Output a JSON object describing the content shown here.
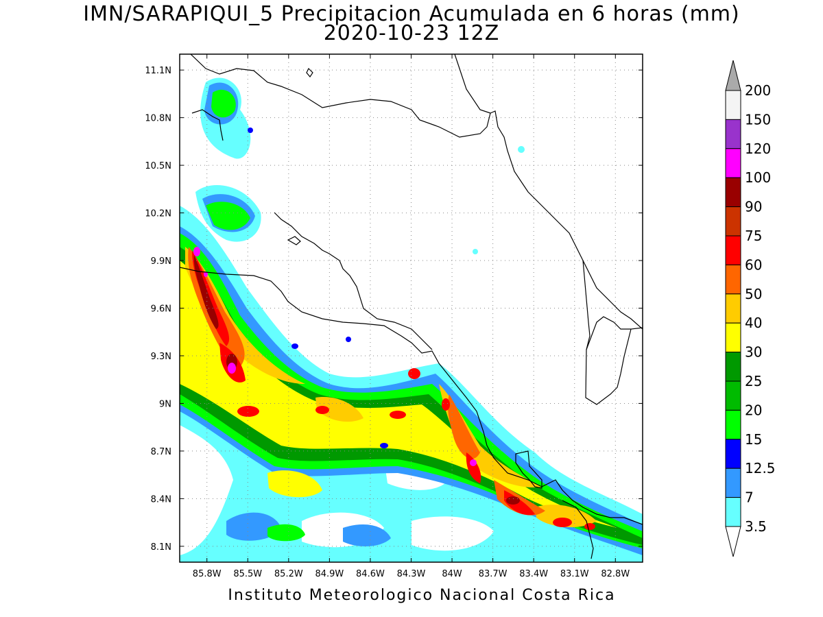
{
  "title": {
    "line1": "IMN/SARAPIQUI_5 Precipitacion Acumulada en 6 horas (mm)",
    "line2": "2020-10-23 12Z"
  },
  "footer": "Instituto Meteorologico Nacional Costa Rica",
  "map": {
    "lon_range": [
      -86.0,
      -82.6
    ],
    "lat_range": [
      8.0,
      11.2
    ],
    "x_ticks": [
      "85.8W",
      "85.5W",
      "85.2W",
      "84.9W",
      "84.6W",
      "84.3W",
      "84W",
      "83.7W",
      "83.4W",
      "83.1W",
      "82.8W"
    ],
    "y_ticks": [
      "11.1N",
      "10.8N",
      "10.5N",
      "10.2N",
      "9.9N",
      "9.6N",
      "9.3N",
      "9N",
      "8.7N",
      "8.4N",
      "8.1N"
    ],
    "grid": "dotted",
    "coastline": true
  },
  "colorbar": {
    "labels": [
      "200",
      "150",
      "120",
      "100",
      "90",
      "75",
      "60",
      "50",
      "40",
      "30",
      "25",
      "20",
      "15",
      "12.5",
      "7",
      "3.5"
    ],
    "colors": [
      "#f4f4f4",
      "#9933cc",
      "#ff00ff",
      "#990000",
      "#cc3300",
      "#ff0000",
      "#ff6600",
      "#ffcc00",
      "#ffff00",
      "#009900",
      "#00bb00",
      "#00ff00",
      "#0000ff",
      "#3399ff",
      "#66ffff"
    ],
    "top_arrow_color": "#aaaaaa",
    "bottom_arrow_color": "#ffffff"
  }
}
